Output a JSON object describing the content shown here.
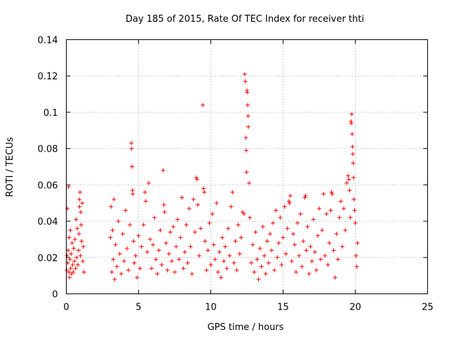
{
  "chart_data": {
    "type": "scatter",
    "title": "Day 185 of 2015, Rate Of TEC Index for receiver thti",
    "xlabel": "GPS time / hours",
    "ylabel": "ROTI / TECUs",
    "xlim": [
      0,
      25
    ],
    "ylim": [
      0,
      0.14
    ],
    "xticks": [
      0,
      5,
      10,
      15,
      20,
      25
    ],
    "xtick_labels": [
      "0",
      "5",
      "10",
      "15",
      "20",
      "25"
    ],
    "yticks": [
      0,
      0.02,
      0.04,
      0.06,
      0.08,
      0.1,
      0.12,
      0.14
    ],
    "ytick_labels": [
      "0",
      "0.02",
      "0.04",
      "0.06",
      "0.08",
      "0.1",
      "0.12",
      "0.14"
    ],
    "grid": true,
    "marker": "+",
    "color": "#ff0000",
    "data_gap_hours": [
      1.3,
      3.0
    ],
    "series": [
      {
        "name": "ROTI",
        "points": [
          [
            0.02,
            0.013
          ],
          [
            0.05,
            0.021
          ],
          [
            0.08,
            0.047
          ],
          [
            0.1,
            0.017
          ],
          [
            0.12,
            0.024
          ],
          [
            0.15,
            0.059
          ],
          [
            0.18,
            0.012
          ],
          [
            0.2,
            0.031
          ],
          [
            0.22,
            0.009
          ],
          [
            0.25,
            0.019
          ],
          [
            0.28,
            0.035
          ],
          [
            0.3,
            0.014
          ],
          [
            0.33,
            0.022
          ],
          [
            0.36,
            0.011
          ],
          [
            0.4,
            0.028
          ],
          [
            0.44,
            0.016
          ],
          [
            0.48,
            0.012
          ],
          [
            0.52,
            0.025
          ],
          [
            0.56,
            0.018
          ],
          [
            0.6,
            0.03
          ],
          [
            0.64,
            0.014
          ],
          [
            0.68,
            0.041
          ],
          [
            0.72,
            0.02
          ],
          [
            0.76,
            0.036
          ],
          [
            0.8,
            0.016
          ],
          [
            0.84,
            0.024
          ],
          [
            0.88,
            0.033
          ],
          [
            0.9,
            0.052
          ],
          [
            0.92,
            0.048
          ],
          [
            0.95,
            0.056
          ],
          [
            0.98,
            0.021
          ],
          [
            1.0,
            0.045
          ],
          [
            1.03,
            0.038
          ],
          [
            1.06,
            0.029
          ],
          [
            1.1,
            0.05
          ],
          [
            1.14,
            0.018
          ],
          [
            1.18,
            0.026
          ],
          [
            1.22,
            0.012
          ],
          [
            3.05,
            0.031
          ],
          [
            3.1,
            0.048
          ],
          [
            3.15,
            0.012
          ],
          [
            3.2,
            0.035
          ],
          [
            3.25,
            0.019
          ],
          [
            3.3,
            0.052
          ],
          [
            3.35,
            0.008
          ],
          [
            3.4,
            0.027
          ],
          [
            3.5,
            0.015
          ],
          [
            3.6,
            0.04
          ],
          [
            3.7,
            0.022
          ],
          [
            3.8,
            0.011
          ],
          [
            3.9,
            0.033
          ],
          [
            4.0,
            0.018
          ],
          [
            4.1,
            0.046
          ],
          [
            4.2,
            0.025
          ],
          [
            4.3,
            0.013
          ],
          [
            4.4,
            0.038
          ],
          [
            4.5,
            0.083
          ],
          [
            4.52,
            0.08
          ],
          [
            4.55,
            0.07
          ],
          [
            4.58,
            0.057
          ],
          [
            4.6,
            0.055
          ],
          [
            4.65,
            0.029
          ],
          [
            4.7,
            0.017
          ],
          [
            4.8,
            0.021
          ],
          [
            4.9,
            0.009
          ],
          [
            5.0,
            0.032
          ],
          [
            5.1,
            0.014
          ],
          [
            5.2,
            0.026
          ],
          [
            5.35,
            0.038
          ],
          [
            5.45,
            0.056
          ],
          [
            5.5,
            0.051
          ],
          [
            5.6,
            0.023
          ],
          [
            5.7,
            0.061
          ],
          [
            5.8,
            0.03
          ],
          [
            5.9,
            0.014
          ],
          [
            6.0,
            0.027
          ],
          [
            6.1,
            0.042
          ],
          [
            6.2,
            0.019
          ],
          [
            6.3,
            0.011
          ],
          [
            6.4,
            0.024
          ],
          [
            6.5,
            0.035
          ],
          [
            6.6,
            0.016
          ],
          [
            6.7,
            0.068
          ],
          [
            6.75,
            0.049
          ],
          [
            6.8,
            0.045
          ],
          [
            6.9,
            0.028
          ],
          [
            7.0,
            0.013
          ],
          [
            7.1,
            0.022
          ],
          [
            7.2,
            0.034
          ],
          [
            7.3,
            0.018
          ],
          [
            7.4,
            0.037
          ],
          [
            7.5,
            0.012
          ],
          [
            7.6,
            0.026
          ],
          [
            7.7,
            0.041
          ],
          [
            7.8,
            0.019
          ],
          [
            7.9,
            0.031
          ],
          [
            8.0,
            0.053
          ],
          [
            8.1,
            0.014
          ],
          [
            8.2,
            0.023
          ],
          [
            8.3,
            0.038
          ],
          [
            8.4,
            0.017
          ],
          [
            8.5,
            0.047
          ],
          [
            8.6,
            0.026
          ],
          [
            8.7,
            0.011
          ],
          [
            8.8,
            0.052
          ],
          [
            8.9,
            0.034
          ],
          [
            9.0,
            0.064
          ],
          [
            9.05,
            0.063
          ],
          [
            9.1,
            0.049
          ],
          [
            9.2,
            0.021
          ],
          [
            9.3,
            0.036
          ],
          [
            9.45,
            0.104
          ],
          [
            9.5,
            0.058
          ],
          [
            9.55,
            0.056
          ],
          [
            9.6,
            0.029
          ],
          [
            9.7,
            0.013
          ],
          [
            9.8,
            0.024
          ],
          [
            9.9,
            0.039
          ],
          [
            10.0,
            0.016
          ],
          [
            10.1,
            0.044
          ],
          [
            10.2,
            0.027
          ],
          [
            10.3,
            0.019
          ],
          [
            10.4,
            0.05
          ],
          [
            10.5,
            0.012
          ],
          [
            10.6,
            0.023
          ],
          [
            10.7,
            0.009
          ],
          [
            10.8,
            0.031
          ],
          [
            10.9,
            0.018
          ],
          [
            11.0,
            0.026
          ],
          [
            11.1,
            0.014
          ],
          [
            11.2,
            0.036
          ],
          [
            11.3,
            0.021
          ],
          [
            11.4,
            0.048
          ],
          [
            11.5,
            0.056
          ],
          [
            11.6,
            0.017
          ],
          [
            11.7,
            0.029
          ],
          [
            11.8,
            0.013
          ],
          [
            11.9,
            0.038
          ],
          [
            12.0,
            0.022
          ],
          [
            12.1,
            0.031
          ],
          [
            12.2,
            0.045
          ],
          [
            12.3,
            0.044
          ],
          [
            12.35,
            0.121
          ],
          [
            12.38,
            0.117
          ],
          [
            12.42,
            0.086
          ],
          [
            12.45,
            0.079
          ],
          [
            12.48,
            0.067
          ],
          [
            12.5,
            0.112
          ],
          [
            12.52,
            0.111
          ],
          [
            12.55,
            0.104
          ],
          [
            12.58,
            0.098
          ],
          [
            12.6,
            0.092
          ],
          [
            12.65,
            0.061
          ],
          [
            12.7,
            0.042
          ],
          [
            12.8,
            0.017
          ],
          [
            12.9,
            0.027
          ],
          [
            13.0,
            0.012
          ],
          [
            13.1,
            0.034
          ],
          [
            13.2,
            0.019
          ],
          [
            13.3,
            0.008
          ],
          [
            13.4,
            0.025
          ],
          [
            13.5,
            0.015
          ],
          [
            13.6,
            0.037
          ],
          [
            13.7,
            0.021
          ],
          [
            13.8,
            0.011
          ],
          [
            13.9,
            0.029
          ],
          [
            14.0,
            0.017
          ],
          [
            14.1,
            0.033
          ],
          [
            14.2,
            0.024
          ],
          [
            14.3,
            0.039
          ],
          [
            14.4,
            0.013
          ],
          [
            14.5,
            0.046
          ],
          [
            14.6,
            0.02
          ],
          [
            14.7,
            0.028
          ],
          [
            14.8,
            0.042
          ],
          [
            14.9,
            0.016
          ],
          [
            15.0,
            0.031
          ],
          [
            15.1,
            0.048
          ],
          [
            15.2,
            0.022
          ],
          [
            15.3,
            0.036
          ],
          [
            15.4,
            0.051
          ],
          [
            15.45,
            0.05
          ],
          [
            15.5,
            0.054
          ],
          [
            15.6,
            0.018
          ],
          [
            15.7,
            0.033
          ],
          [
            15.8,
            0.027
          ],
          [
            15.9,
            0.012
          ],
          [
            16.0,
            0.039
          ],
          [
            16.1,
            0.021
          ],
          [
            16.2,
            0.044
          ],
          [
            16.3,
            0.015
          ],
          [
            16.4,
            0.029
          ],
          [
            16.5,
            0.053
          ],
          [
            16.55,
            0.054
          ],
          [
            16.6,
            0.024
          ],
          [
            16.7,
            0.037
          ],
          [
            16.8,
            0.011
          ],
          [
            16.9,
            0.026
          ],
          [
            17.0,
            0.018
          ],
          [
            17.1,
            0.041
          ],
          [
            17.2,
            0.023
          ],
          [
            17.3,
            0.013
          ],
          [
            17.4,
            0.032
          ],
          [
            17.5,
            0.047
          ],
          [
            17.6,
            0.019
          ],
          [
            17.7,
            0.035
          ],
          [
            17.8,
            0.055
          ],
          [
            17.9,
            0.021
          ],
          [
            18.0,
            0.044
          ],
          [
            18.1,
            0.016
          ],
          [
            18.2,
            0.028
          ],
          [
            18.3,
            0.046
          ],
          [
            18.35,
            0.056
          ],
          [
            18.4,
            0.055
          ],
          [
            18.5,
            0.024
          ],
          [
            18.6,
            0.009
          ],
          [
            18.7,
            0.033
          ],
          [
            18.8,
            0.019
          ],
          [
            18.9,
            0.042
          ],
          [
            19.0,
            0.051
          ],
          [
            19.1,
            0.026
          ],
          [
            19.2,
            0.047
          ],
          [
            19.3,
            0.035
          ],
          [
            19.4,
            0.061
          ],
          [
            19.5,
            0.065
          ],
          [
            19.55,
            0.063
          ],
          [
            19.6,
            0.057
          ],
          [
            19.65,
            0.042
          ],
          [
            19.7,
            0.095
          ],
          [
            19.72,
            0.094
          ],
          [
            19.75,
            0.099
          ],
          [
            19.78,
            0.088
          ],
          [
            19.8,
            0.081
          ],
          [
            19.82,
            0.077
          ],
          [
            19.85,
            0.072
          ],
          [
            19.88,
            0.064
          ],
          [
            19.9,
            0.052
          ],
          [
            19.95,
            0.046
          ],
          [
            20.0,
            0.039
          ],
          [
            20.05,
            0.021
          ],
          [
            20.1,
            0.015
          ],
          [
            20.15,
            0.028
          ]
        ]
      }
    ]
  }
}
